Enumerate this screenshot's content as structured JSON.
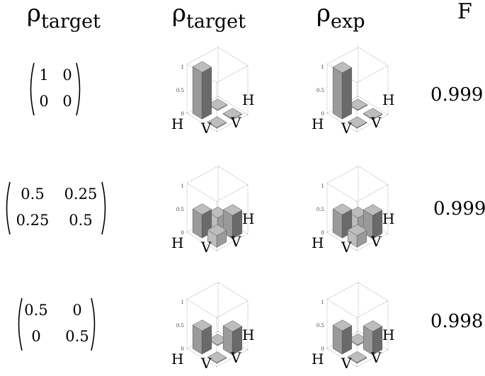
{
  "headers": {
    "matrix": {
      "sym": "ρ",
      "sub": "target"
    },
    "target": {
      "sym": "ρ",
      "sub": "target"
    },
    "exp": {
      "sym": "ρ",
      "sub": "exp"
    },
    "fidelity": "F"
  },
  "rows": [
    {
      "matrix": {
        "a": "1",
        "b": "0",
        "c": "0",
        "d": "0"
      },
      "fidelity": "0.999"
    },
    {
      "matrix": {
        "a": "0.5",
        "b": "0.25",
        "c": "0.25",
        "d": "0.5"
      },
      "fidelity": "0.999"
    },
    {
      "matrix": {
        "a": "0.5",
        "b": "0",
        "c": "0",
        "d": "0.5"
      },
      "fidelity": "0.998"
    }
  ],
  "plot_labels": {
    "h": "H",
    "v": "V",
    "axis_ticks": [
      "1",
      "0.5",
      "0"
    ]
  },
  "bars": [
    {
      "target": [
        1,
        0,
        0,
        0
      ],
      "exp": [
        0.99,
        0.01,
        0.01,
        0.01
      ]
    },
    {
      "target": [
        0.5,
        0.25,
        0.25,
        0.5
      ],
      "exp": [
        0.5,
        0.25,
        0.25,
        0.5
      ]
    },
    {
      "target": [
        0.5,
        0,
        0,
        0.5
      ],
      "exp": [
        0.5,
        0.02,
        0.02,
        0.5
      ]
    }
  ],
  "colors": {
    "bar_light": "#bdbdbd",
    "bar_mid": "#9a9a9a",
    "bar_dark": "#6a6a6a",
    "box": "#8c8c8c"
  }
}
